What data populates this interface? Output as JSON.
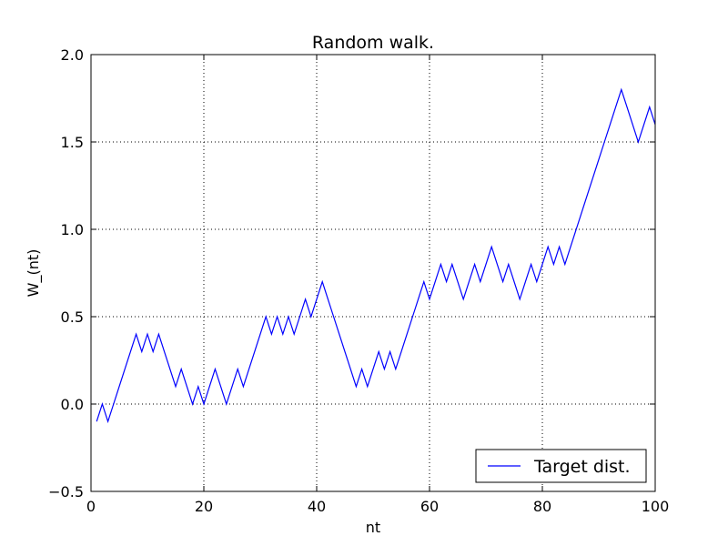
{
  "chart_data": {
    "type": "line",
    "title": "Random walk.",
    "xlabel": "nt",
    "ylabel": "W_(nt)",
    "xlim": [
      0,
      100
    ],
    "ylim": [
      -0.5,
      2.0
    ],
    "xticks": [
      0,
      20,
      40,
      60,
      80,
      100
    ],
    "xtick_labels": [
      "0",
      "20",
      "40",
      "60",
      "80",
      "100"
    ],
    "yticks": [
      -0.5,
      0.0,
      0.5,
      1.0,
      1.5,
      2.0
    ],
    "ytick_labels": [
      "−0.5",
      "0.0",
      "0.5",
      "1.0",
      "1.5",
      "2.0"
    ],
    "grid": true,
    "legend_position": "lower-right",
    "series": [
      {
        "name": "Target dist.",
        "color": "#0000ff",
        "x": [
          1,
          2,
          3,
          4,
          5,
          6,
          7,
          8,
          9,
          10,
          11,
          12,
          13,
          14,
          15,
          16,
          17,
          18,
          19,
          20,
          21,
          22,
          23,
          24,
          25,
          26,
          27,
          28,
          29,
          30,
          31,
          32,
          33,
          34,
          35,
          36,
          37,
          38,
          39,
          40,
          41,
          42,
          43,
          44,
          45,
          46,
          47,
          48,
          49,
          50,
          51,
          52,
          53,
          54,
          55,
          56,
          57,
          58,
          59,
          60,
          61,
          62,
          63,
          64,
          65,
          66,
          67,
          68,
          69,
          70,
          71,
          72,
          73,
          74,
          75,
          76,
          77,
          78,
          79,
          80,
          81,
          82,
          83,
          84,
          85,
          86,
          87,
          88,
          89,
          90,
          91,
          92,
          93,
          94,
          95,
          96,
          97,
          98,
          99,
          100
        ],
        "values": [
          -0.1,
          0.0,
          -0.1,
          0.0,
          0.1,
          0.2,
          0.3,
          0.4,
          0.3,
          0.4,
          0.3,
          0.4,
          0.3,
          0.2,
          0.1,
          0.2,
          0.1,
          0.0,
          0.1,
          0.0,
          0.1,
          0.2,
          0.1,
          0.0,
          0.1,
          0.2,
          0.1,
          0.2,
          0.3,
          0.4,
          0.5,
          0.4,
          0.5,
          0.4,
          0.5,
          0.4,
          0.5,
          0.6,
          0.5,
          0.6,
          0.7,
          0.6,
          0.5,
          0.4,
          0.3,
          0.2,
          0.1,
          0.2,
          0.1,
          0.2,
          0.3,
          0.2,
          0.3,
          0.2,
          0.3,
          0.4,
          0.5,
          0.6,
          0.7,
          0.6,
          0.7,
          0.8,
          0.7,
          0.8,
          0.7,
          0.6,
          0.7,
          0.8,
          0.7,
          0.8,
          0.9,
          0.8,
          0.7,
          0.8,
          0.7,
          0.6,
          0.7,
          0.8,
          0.7,
          0.8,
          0.9,
          0.8,
          0.9,
          0.8,
          0.9,
          1.0,
          1.1,
          1.2,
          1.3,
          1.4,
          1.5,
          1.6,
          1.7,
          1.8,
          1.7,
          1.6,
          1.5,
          1.6,
          1.7,
          1.6
        ]
      }
    ]
  }
}
